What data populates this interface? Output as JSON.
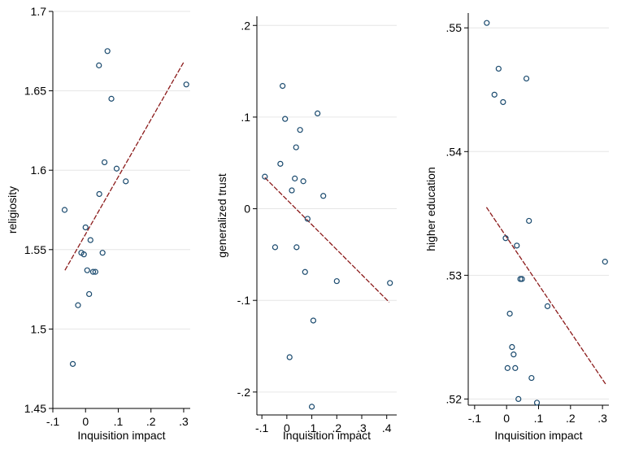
{
  "colors": {
    "marker": "#1a4a6e",
    "fit_line": "#8b1a1a",
    "grid": "#e6e6e6",
    "axis": "#000000",
    "background": "#ffffff"
  },
  "chart_data": [
    {
      "type": "scatter",
      "xlabel": "Inquisition impact",
      "ylabel": "religiosity",
      "xlim": [
        -0.1,
        0.32
      ],
      "ylim": [
        1.45,
        1.7
      ],
      "xticks": [
        -0.1,
        0,
        0.1,
        0.2,
        0.3
      ],
      "xtick_labels": [
        "-.1",
        "0",
        ".1",
        ".2",
        ".3"
      ],
      "yticks": [
        1.45,
        1.5,
        1.55,
        1.6,
        1.65,
        1.7
      ],
      "ytick_labels": [
        "1.45",
        "1.5",
        "1.55",
        "1.6",
        "1.65",
        "1.7"
      ],
      "grid": "horizontal",
      "points": [
        {
          "x": -0.064,
          "y": 1.575
        },
        {
          "x": 0.041,
          "y": 1.666
        },
        {
          "x": 0.067,
          "y": 1.675
        },
        {
          "x": 0.079,
          "y": 1.645
        },
        {
          "x": 0.308,
          "y": 1.654
        },
        {
          "x": 0.058,
          "y": 1.605
        },
        {
          "x": 0.095,
          "y": 1.601
        },
        {
          "x": 0.123,
          "y": 1.593
        },
        {
          "x": 0.042,
          "y": 1.585
        },
        {
          "x": 0.0,
          "y": 1.564
        },
        {
          "x": 0.015,
          "y": 1.556
        },
        {
          "x": -0.013,
          "y": 1.548
        },
        {
          "x": -0.005,
          "y": 1.547
        },
        {
          "x": 0.052,
          "y": 1.548
        },
        {
          "x": 0.005,
          "y": 1.537
        },
        {
          "x": 0.023,
          "y": 1.536
        },
        {
          "x": 0.03,
          "y": 1.536
        },
        {
          "x": 0.011,
          "y": 1.522
        },
        {
          "x": -0.023,
          "y": 1.515
        },
        {
          "x": -0.039,
          "y": 1.478
        }
      ],
      "fit_line": {
        "x": [
          -0.063,
          0.3
        ],
        "y": [
          1.537,
          1.668
        ]
      }
    },
    {
      "type": "scatter",
      "xlabel": "Inquisition impact",
      "ylabel": "generalized trust",
      "xlim": [
        -0.12,
        0.44
      ],
      "ylim": [
        -0.225,
        0.21
      ],
      "xticks": [
        -0.1,
        0,
        0.1,
        0.2,
        0.3,
        0.4
      ],
      "xtick_labels": [
        "-.1",
        "0",
        ".1",
        ".2",
        ".3",
        ".4"
      ],
      "yticks": [
        -0.2,
        -0.1,
        0,
        0.1,
        0.2
      ],
      "ytick_labels": [
        "-.2",
        "-.1",
        "0",
        ".1",
        ".2"
      ],
      "grid": "horizontal",
      "points": [
        {
          "x": -0.017,
          "y": 0.134
        },
        {
          "x": 0.123,
          "y": 0.104
        },
        {
          "x": -0.007,
          "y": 0.098
        },
        {
          "x": 0.053,
          "y": 0.086
        },
        {
          "x": 0.037,
          "y": 0.067
        },
        {
          "x": -0.026,
          "y": 0.049
        },
        {
          "x": -0.088,
          "y": 0.035
        },
        {
          "x": 0.032,
          "y": 0.033
        },
        {
          "x": 0.066,
          "y": 0.03
        },
        {
          "x": 0.02,
          "y": 0.02
        },
        {
          "x": 0.146,
          "y": 0.014
        },
        {
          "x": 0.083,
          "y": -0.011
        },
        {
          "x": -0.047,
          "y": -0.042
        },
        {
          "x": 0.039,
          "y": -0.042
        },
        {
          "x": 0.073,
          "y": -0.069
        },
        {
          "x": 0.2,
          "y": -0.079
        },
        {
          "x": 0.413,
          "y": -0.081
        },
        {
          "x": 0.106,
          "y": -0.122
        },
        {
          "x": 0.011,
          "y": -0.162
        },
        {
          "x": 0.1,
          "y": -0.216
        }
      ],
      "fit_line": {
        "x": [
          -0.088,
          0.41
        ],
        "y": [
          0.034,
          -0.102
        ]
      }
    },
    {
      "type": "scatter",
      "xlabel": "Inquisition impact",
      "ylabel": "higher education",
      "xlim": [
        -0.12,
        0.32
      ],
      "ylim": [
        0.5195,
        0.5512
      ],
      "xticks": [
        -0.1,
        0,
        0.1,
        0.2,
        0.3
      ],
      "xtick_labels": [
        "-.1",
        "0",
        ".1",
        ".2",
        ".3"
      ],
      "yticks": [
        0.52,
        0.53,
        0.54,
        0.55
      ],
      "ytick_labels": [
        ".52",
        ".53",
        ".54",
        ".55"
      ],
      "grid": "horizontal",
      "points": [
        {
          "x": -0.062,
          "y": 0.5504
        },
        {
          "x": -0.025,
          "y": 0.5467
        },
        {
          "x": 0.062,
          "y": 0.5459
        },
        {
          "x": -0.038,
          "y": 0.5446
        },
        {
          "x": -0.011,
          "y": 0.544
        },
        {
          "x": 0.07,
          "y": 0.5344
        },
        {
          "x": -0.003,
          "y": 0.533
        },
        {
          "x": 0.032,
          "y": 0.5324
        },
        {
          "x": 0.308,
          "y": 0.5311
        },
        {
          "x": 0.048,
          "y": 0.5297
        },
        {
          "x": 0.043,
          "y": 0.5297
        },
        {
          "x": 0.128,
          "y": 0.5275
        },
        {
          "x": 0.01,
          "y": 0.5269
        },
        {
          "x": 0.017,
          "y": 0.5242
        },
        {
          "x": 0.022,
          "y": 0.5236
        },
        {
          "x": 0.003,
          "y": 0.5225
        },
        {
          "x": 0.027,
          "y": 0.5225
        },
        {
          "x": 0.078,
          "y": 0.5217
        },
        {
          "x": 0.037,
          "y": 0.52
        },
        {
          "x": 0.095,
          "y": 0.5197
        }
      ],
      "fit_line": {
        "x": [
          -0.063,
          0.31
        ],
        "y": [
          0.5355,
          0.5212
        ]
      }
    }
  ]
}
